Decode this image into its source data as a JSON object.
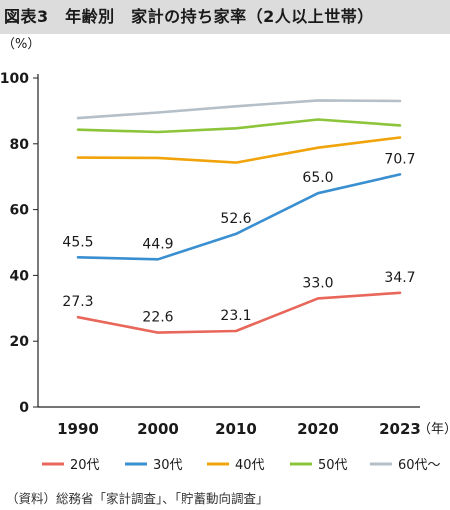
{
  "title": "図表3　年齢別　家計の持ち家率（2人以上世帯）",
  "source": "（資料）総務省「家計調査」、「貯蓄動向調査」",
  "chart_data": {
    "type": "line",
    "title": "図表3　年齢別　家計の持ち家率（2人以上世帯）",
    "ylabel": "（%）",
    "xlabel_unit": "（年）",
    "x": [
      "1990",
      "2000",
      "2010",
      "2020",
      "2023"
    ],
    "ylim": [
      0,
      100
    ],
    "yticks": [
      0,
      20,
      40,
      60,
      80,
      100
    ],
    "grid": false,
    "legend_position": "bottom",
    "series": [
      {
        "name": "20代",
        "color": "#e8675a",
        "values": [
          27.3,
          22.6,
          23.1,
          33.0,
          34.7
        ],
        "labels": [
          "27.3",
          "22.6",
          "23.1",
          "33.0",
          "34.7"
        ]
      },
      {
        "name": "30代",
        "color": "#3a8fd1",
        "values": [
          45.5,
          44.9,
          52.6,
          65.0,
          70.7
        ],
        "labels": [
          "45.5",
          "44.9",
          "52.6",
          "65.0",
          "70.7"
        ]
      },
      {
        "name": "40代",
        "color": "#f0a30a",
        "values": [
          75.8,
          75.7,
          74.3,
          78.8,
          81.9
        ]
      },
      {
        "name": "50代",
        "color": "#8cc43a",
        "values": [
          84.3,
          83.6,
          84.7,
          87.4,
          85.6
        ]
      },
      {
        "name": "60代〜",
        "color": "#b4bfc8",
        "values": [
          87.8,
          89.5,
          91.4,
          93.2,
          93.0
        ]
      }
    ]
  }
}
